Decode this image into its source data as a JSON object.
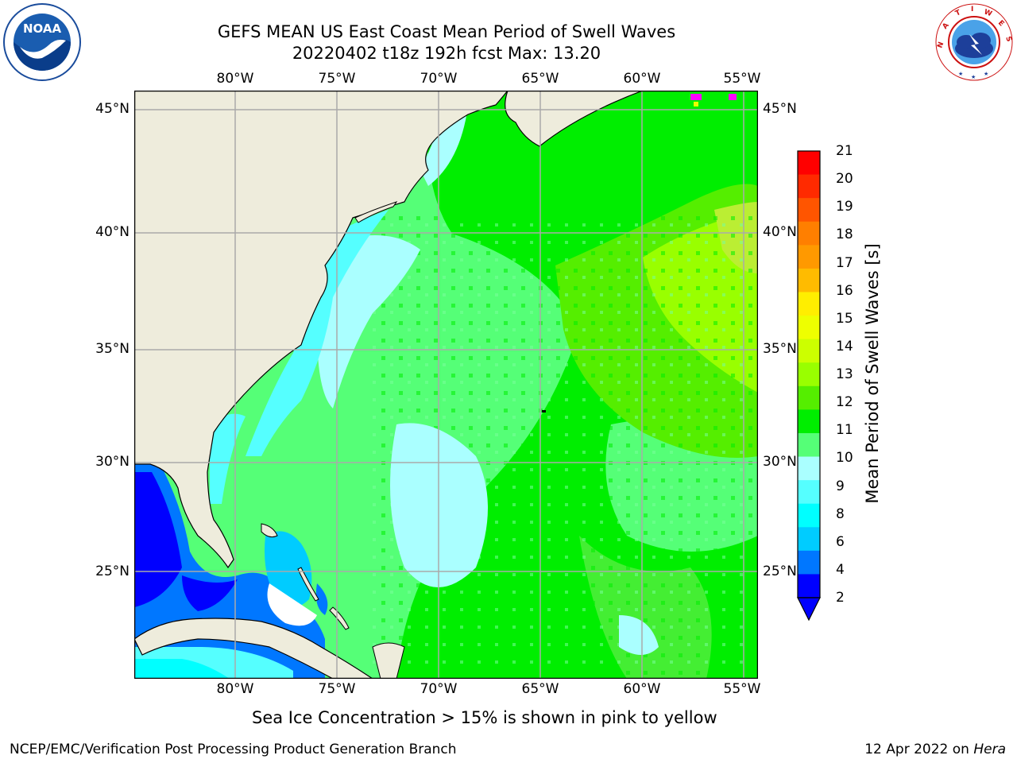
{
  "header": {
    "title_line1": "GEFS MEAN US East Coast Mean Period of Swell Waves",
    "title_line2": "20220402 t18z 192h fcst   Max: 13.20"
  },
  "logos": {
    "noaa": {
      "text": "NOAA",
      "ring_text": "NATIONAL OCEANIC AND ATMOSPHERIC ADMINISTRATION · U.S. DEPARTMENT OF COMMERCE"
    },
    "nws": {
      "ring_text": "NATIONAL WEATHER SERVICE"
    }
  },
  "map": {
    "lon_labels": [
      "80°W",
      "75°W",
      "70°W",
      "65°W",
      "60°W",
      "55°W"
    ],
    "lat_labels": [
      "45°N",
      "40°N",
      "35°N",
      "30°N",
      "25°N"
    ],
    "colors": {
      "land": "#eeecdc",
      "grid": "#aaaaaa",
      "sea_ice_note_color": "pink to yellow"
    }
  },
  "colorbar": {
    "title": "Mean Period of Swell Waves [s]",
    "ticks": [
      "21",
      "20",
      "19",
      "18",
      "17",
      "16",
      "15",
      "14",
      "13",
      "12",
      "11",
      "10",
      "9",
      "8",
      "6",
      "4",
      "2"
    ],
    "colors": [
      "#ff0000",
      "#ff2a00",
      "#ff5500",
      "#ff7f00",
      "#ff9900",
      "#ffbb00",
      "#ffee00",
      "#eeff00",
      "#ccff00",
      "#99ff00",
      "#55ee00",
      "#00ee00",
      "#55ff77",
      "#aaffff",
      "#55ffff",
      "#00ffff",
      "#00ccff",
      "#0077ff",
      "#0000ff"
    ]
  },
  "notes": {
    "sea_ice": "Sea Ice Concentration > 15% is shown in pink to yellow"
  },
  "footer": {
    "left": "NCEP/EMC/Verification Post Processing Product Generation Branch",
    "date": "12 Apr 2022 on",
    "host": "Hera"
  }
}
